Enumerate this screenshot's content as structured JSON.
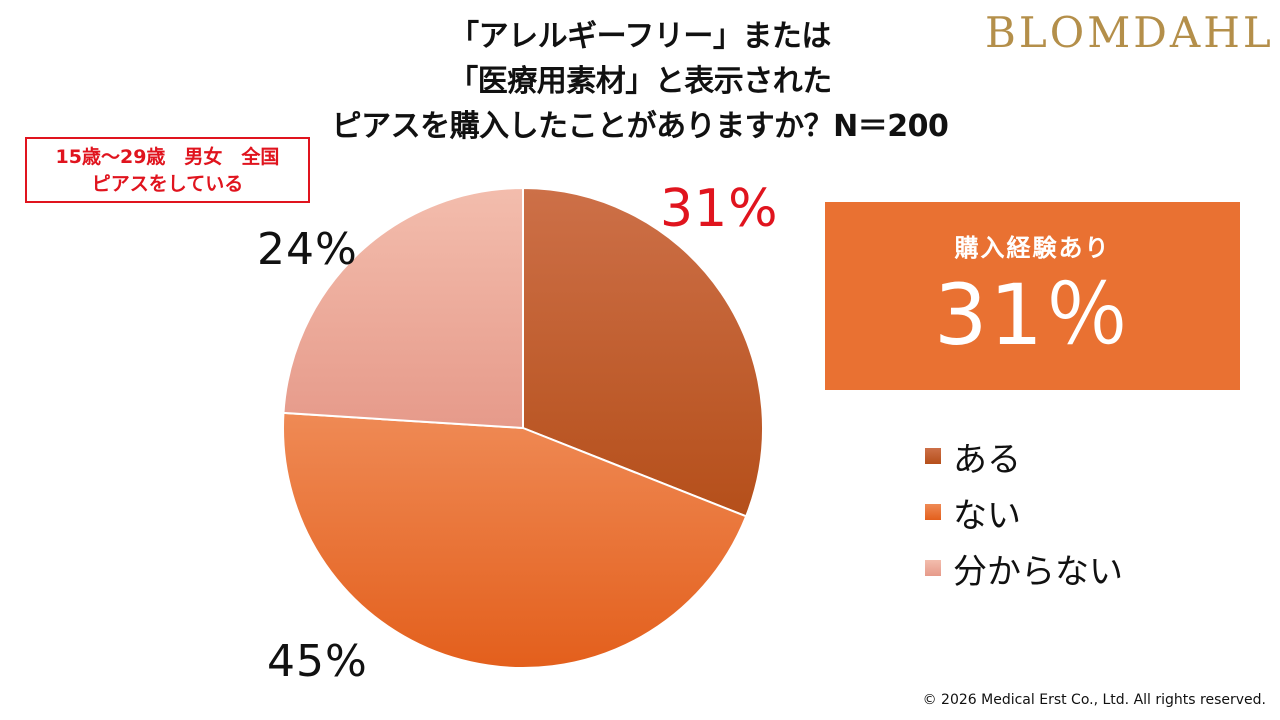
{
  "title_lines": [
    "「アレルギーフリー」または",
    "「医療用素材」と表示された",
    "ピアスを購入したことがありますか？N＝200"
  ],
  "brand": "BLOMDAHL",
  "sample_box": {
    "line1": "15歳～29歳　男女　全国",
    "line2": "ピアスをしている"
  },
  "highlight": {
    "label": "購入経験あり",
    "value": "31％"
  },
  "copyright": "© 2026 Medical Erst Co., Ltd. All rights reserved.",
  "colors": {
    "accent_red": "#e0141e",
    "highlight_bg": "#e97132",
    "brand_gold": "#b48f4a"
  },
  "chart_data": {
    "type": "pie",
    "start_angle_deg": 0,
    "direction": "clockwise",
    "slices": [
      {
        "label": "ある",
        "value": 31,
        "value_label": "31%",
        "color": "#c55a24",
        "color_light": "#cd7048",
        "color_dark": "#b54f1a"
      },
      {
        "label": "ない",
        "value": 45,
        "value_label": "45%",
        "color": "#ea6d2c",
        "color_light": "#ef8a55",
        "color_dark": "#e35f1c"
      },
      {
        "label": "分からない",
        "value": 24,
        "value_label": "24%",
        "color": "#eda899",
        "color_light": "#f3bdad",
        "color_dark": "#e69a8a"
      }
    ]
  }
}
